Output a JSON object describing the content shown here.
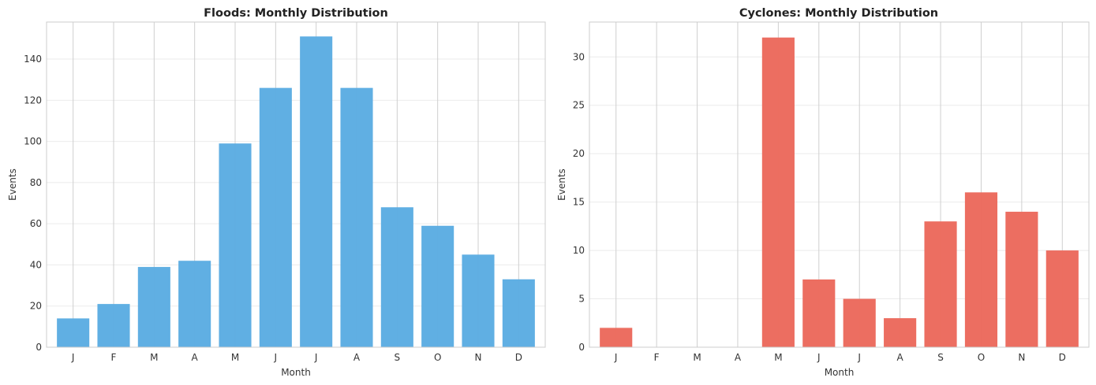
{
  "chart_data": [
    {
      "type": "bar",
      "title": "Floods: Monthly Distribution",
      "xlabel": "Month",
      "ylabel": "Events",
      "categories": [
        "J",
        "F",
        "M",
        "A",
        "M",
        "J",
        "J",
        "A",
        "S",
        "O",
        "N",
        "D"
      ],
      "values": [
        14,
        21,
        39,
        42,
        99,
        126,
        151,
        126,
        68,
        59,
        45,
        33
      ],
      "ylim": [
        0,
        158
      ],
      "yticks": [
        0,
        20,
        40,
        60,
        80,
        100,
        120,
        140
      ],
      "color": "#5dade2",
      "grid": true
    },
    {
      "type": "bar",
      "title": "Cyclones: Monthly Distribution",
      "xlabel": "Month",
      "ylabel": "Events",
      "categories": [
        "J",
        "F",
        "M",
        "A",
        "M",
        "J",
        "J",
        "A",
        "S",
        "O",
        "N",
        "D"
      ],
      "values": [
        2,
        0,
        0,
        0,
        32,
        7,
        5,
        3,
        13,
        16,
        14,
        10
      ],
      "ylim": [
        0,
        33.6
      ],
      "yticks": [
        0,
        5,
        10,
        15,
        20,
        25,
        30
      ],
      "color": "#ec6b5e",
      "grid": true
    }
  ]
}
